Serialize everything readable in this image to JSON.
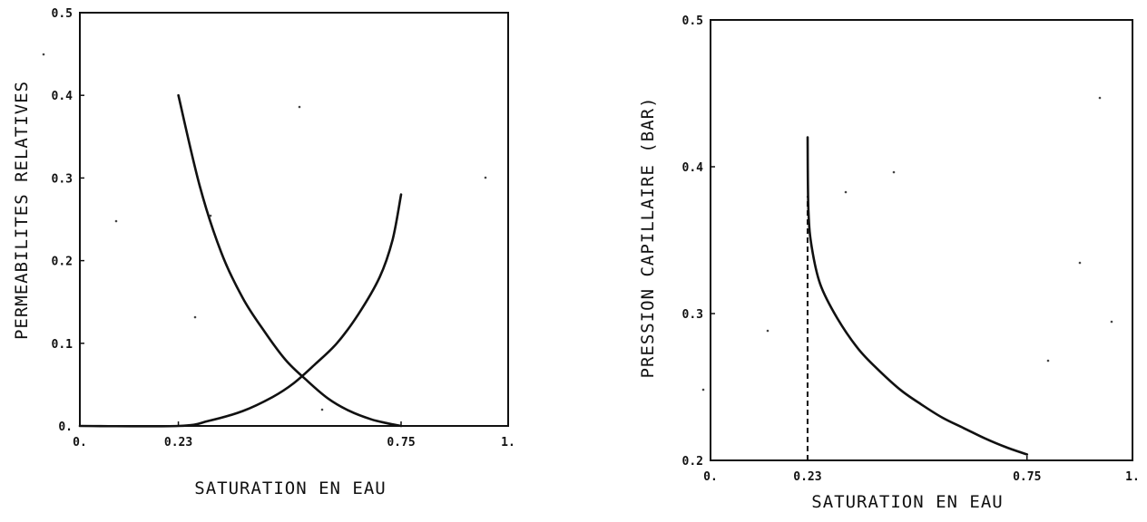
{
  "chart_data": [
    {
      "type": "line",
      "title": "",
      "xlabel": "SATURATION EN EAU",
      "ylabel": "PERMEABILITES RELATIVES",
      "xlim": [
        0,
        1
      ],
      "ylim": [
        0,
        0.5
      ],
      "xticks": [
        "0.",
        "0.23",
        "0.75",
        "1."
      ],
      "xtick_values": [
        0,
        0.23,
        0.75,
        1
      ],
      "yticks": [
        "0.",
        "0.1",
        "0.2",
        "0.3",
        "0.4",
        "0.5"
      ],
      "ytick_values": [
        0,
        0.1,
        0.2,
        0.3,
        0.4,
        0.5
      ],
      "grid": false,
      "series": [
        {
          "x": [
            0.23,
            0.28,
            0.33,
            0.38,
            0.43,
            0.48,
            0.53,
            0.58,
            0.63,
            0.68,
            0.72,
            0.75
          ],
          "y": [
            0.4,
            0.29,
            0.21,
            0.155,
            0.115,
            0.08,
            0.055,
            0.033,
            0.018,
            0.008,
            0.003,
            0.0
          ]
        },
        {
          "x": [
            0.0,
            0.23,
            0.3,
            0.38,
            0.45,
            0.5,
            0.55,
            0.6,
            0.65,
            0.7,
            0.73,
            0.75
          ],
          "y": [
            0.0,
            0.0,
            0.006,
            0.018,
            0.035,
            0.052,
            0.075,
            0.1,
            0.135,
            0.18,
            0.225,
            0.28
          ]
        }
      ]
    },
    {
      "type": "line",
      "title": "",
      "xlabel": "SATURATION EN EAU",
      "ylabel": "PRESSION CAPILLAIRE (BAR)",
      "xlim": [
        0,
        1
      ],
      "ylim": [
        0.2,
        0.5
      ],
      "xticks": [
        "0.",
        "0.23",
        "0.75",
        "1."
      ],
      "xtick_values": [
        0,
        0.23,
        0.75,
        1
      ],
      "yticks": [
        "0.2",
        "0.3",
        "0.4",
        "0.5"
      ],
      "ytick_values": [
        0.2,
        0.3,
        0.4,
        0.5
      ],
      "grid": false,
      "series": [
        {
          "x": [
            0.23,
            0.232,
            0.24,
            0.26,
            0.3,
            0.35,
            0.4,
            0.45,
            0.5,
            0.55,
            0.6,
            0.65,
            0.7,
            0.75
          ],
          "y": [
            0.42,
            0.37,
            0.345,
            0.32,
            0.297,
            0.276,
            0.261,
            0.248,
            0.238,
            0.229,
            0.222,
            0.215,
            0.209,
            0.204
          ]
        }
      ],
      "annotations": [
        {
          "type": "dashed-vertical-line",
          "x": 0.23,
          "y_from": 0.2,
          "y_to": 0.38
        }
      ]
    }
  ]
}
